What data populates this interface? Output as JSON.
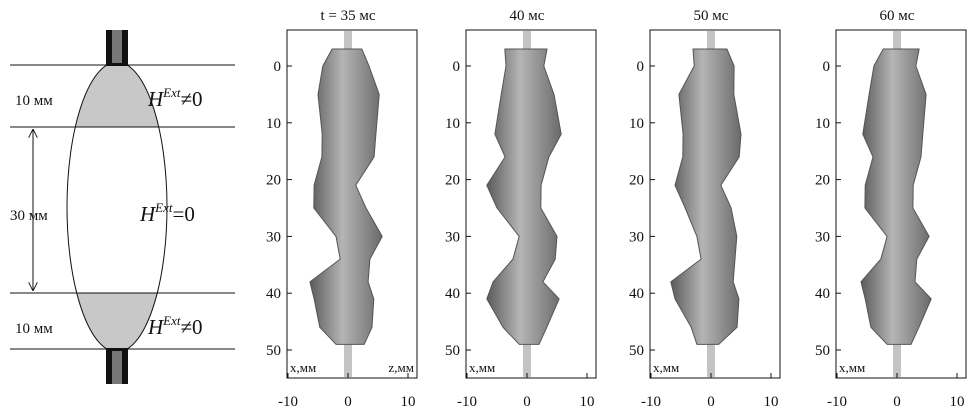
{
  "schematic": {
    "top_gap": "10 мм",
    "middle_gap": "30 мм",
    "bottom_gap": "10 мм",
    "top_field": {
      "base": "H",
      "sup": "Ext",
      "rest": "≠0"
    },
    "middle_field": {
      "base": "H",
      "sup": "Ext",
      "rest": "=0"
    },
    "bottom_field": {
      "base": "H",
      "sup": "Ext",
      "rest": "≠0"
    }
  },
  "panels": [
    {
      "title": "t = 35 мс",
      "yticks": [
        0,
        10,
        20,
        30,
        40,
        50
      ],
      "xticks": [
        -10,
        0,
        10
      ],
      "x_label": "x,мм",
      "z_label": "z,мм"
    },
    {
      "title": "40 мс",
      "yticks": [
        0,
        10,
        20,
        30,
        40,
        50
      ],
      "xticks": [
        -10,
        0,
        10
      ],
      "x_label": "x,мм"
    },
    {
      "title": "50 мс",
      "yticks": [
        0,
        10,
        20,
        30,
        40,
        50
      ],
      "xticks": [
        -10,
        0,
        10
      ],
      "x_label": "x,мм"
    },
    {
      "title": "60 мс",
      "yticks": [
        0,
        10,
        20,
        30,
        40,
        50
      ],
      "xticks": [
        -10,
        0,
        10
      ],
      "x_label": "x,мм"
    }
  ]
}
